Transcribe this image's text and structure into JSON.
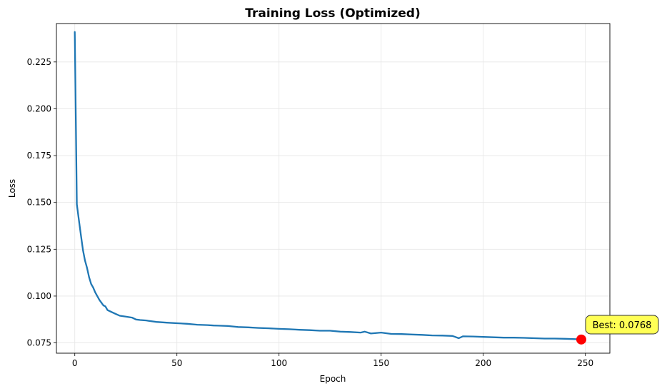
{
  "chart_data": {
    "type": "line",
    "title": "Training Loss (Optimized)",
    "xlabel": "Epoch",
    "ylabel": "Loss",
    "xlim": [
      -9,
      262
    ],
    "ylim": [
      0.0695,
      0.2455
    ],
    "xticks": [
      0,
      50,
      100,
      150,
      200,
      250
    ],
    "xtick_labels": [
      "0",
      "50",
      "100",
      "150",
      "200",
      "250"
    ],
    "yticks": [
      0.075,
      0.1,
      0.125,
      0.15,
      0.175,
      0.2,
      0.225
    ],
    "ytick_labels": [
      "0.075",
      "0.100",
      "0.125",
      "0.150",
      "0.175",
      "0.200",
      "0.225"
    ],
    "grid": true,
    "series": [
      {
        "color": "#1f77b4",
        "x": [
          0,
          1,
          2,
          3,
          4,
          5,
          6,
          7,
          8,
          9,
          10,
          12,
          14,
          15,
          16,
          18,
          20,
          22,
          25,
          28,
          30,
          32,
          35,
          36,
          40,
          45,
          50,
          55,
          60,
          65,
          68,
          70,
          75,
          80,
          85,
          90,
          95,
          100,
          105,
          110,
          115,
          120,
          125,
          130,
          135,
          140,
          142,
          145,
          150,
          155,
          160,
          165,
          170,
          175,
          180,
          185,
          188,
          190,
          195,
          200,
          205,
          210,
          215,
          220,
          225,
          230,
          235,
          240,
          245,
          248
        ],
        "values": [
          0.241,
          0.149,
          0.1405,
          0.1325,
          0.1245,
          0.119,
          0.115,
          0.11,
          0.1065,
          0.1045,
          0.102,
          0.098,
          0.095,
          0.0945,
          0.0925,
          0.0915,
          0.0905,
          0.0895,
          0.089,
          0.0885,
          0.0875,
          0.0872,
          0.087,
          0.0868,
          0.0862,
          0.0858,
          0.0855,
          0.0852,
          0.0847,
          0.0845,
          0.0843,
          0.0842,
          0.084,
          0.0835,
          0.0833,
          0.083,
          0.0828,
          0.0825,
          0.0823,
          0.082,
          0.0818,
          0.0815,
          0.0815,
          0.081,
          0.0808,
          0.0805,
          0.081,
          0.08,
          0.0805,
          0.0798,
          0.0797,
          0.0795,
          0.0793,
          0.079,
          0.0789,
          0.0787,
          0.0775,
          0.0785,
          0.0784,
          0.0782,
          0.078,
          0.0778,
          0.0778,
          0.0777,
          0.0775,
          0.0773,
          0.0773,
          0.0772,
          0.077,
          0.0768
        ]
      }
    ],
    "best_point": {
      "x": 248,
      "y": 0.0768,
      "color": "#ff0000"
    },
    "annotation": {
      "text": "Best: 0.0768",
      "background": "#ffff55",
      "border": "#333333"
    }
  }
}
